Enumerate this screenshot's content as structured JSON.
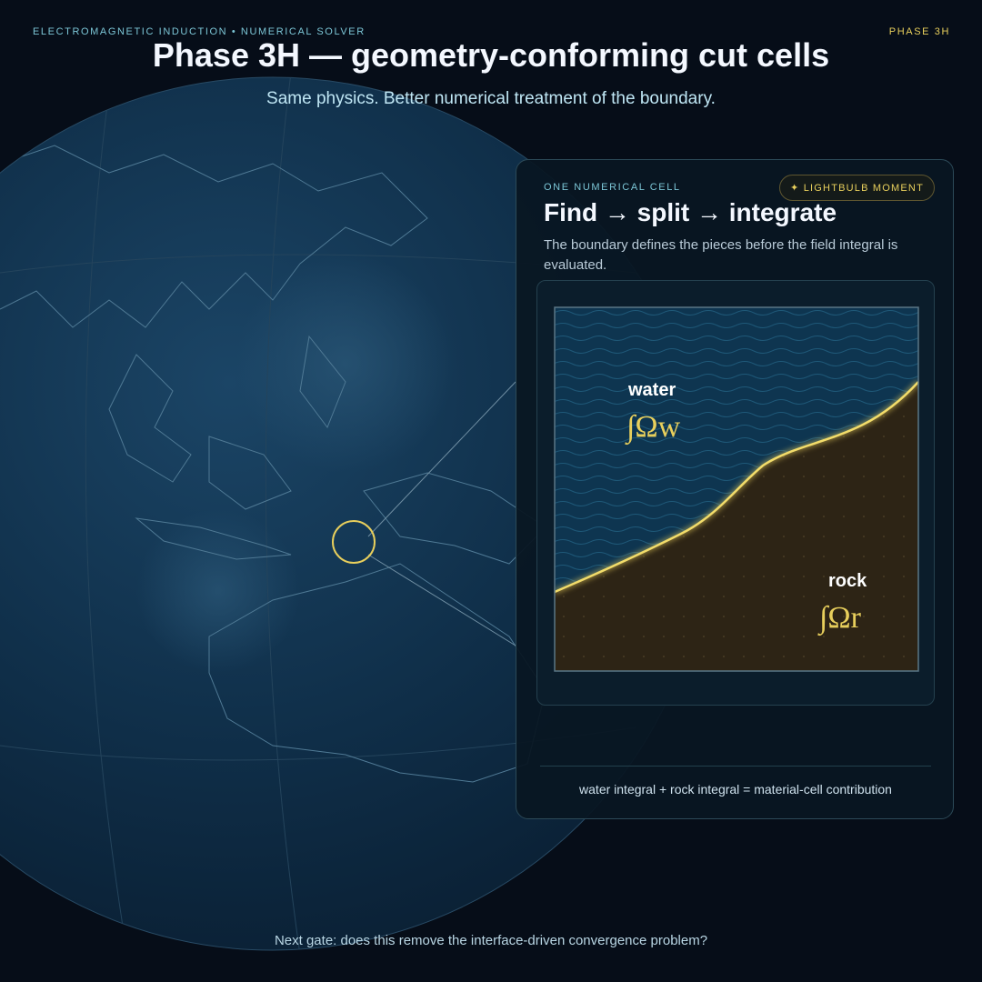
{
  "header": {
    "kicker": "ELECTROMAGNETIC INDUCTION • NUMERICAL SOLVER",
    "phase": "PHASE 3H",
    "title": "Phase 3H — geometry-conforming cut cells",
    "subtitle": "Same physics. Better numerical treatment of the boundary."
  },
  "card": {
    "eyebrow": "ONE NUMERICAL CELL",
    "badge": "✦ LIGHTBULB MOMENT",
    "title": "Find → split → integrate",
    "description": "The boundary defines the pieces before the field integral is evaluated.",
    "equation": "water integral + rock integral = material-cell contribution"
  },
  "cell": {
    "water_label": "water",
    "water_integral": "∫Ωw",
    "rock_label": "rock",
    "rock_integral": "∫Ωr"
  },
  "footer": {
    "note": "Next gate: does this remove the interface-driven convergence problem?"
  }
}
